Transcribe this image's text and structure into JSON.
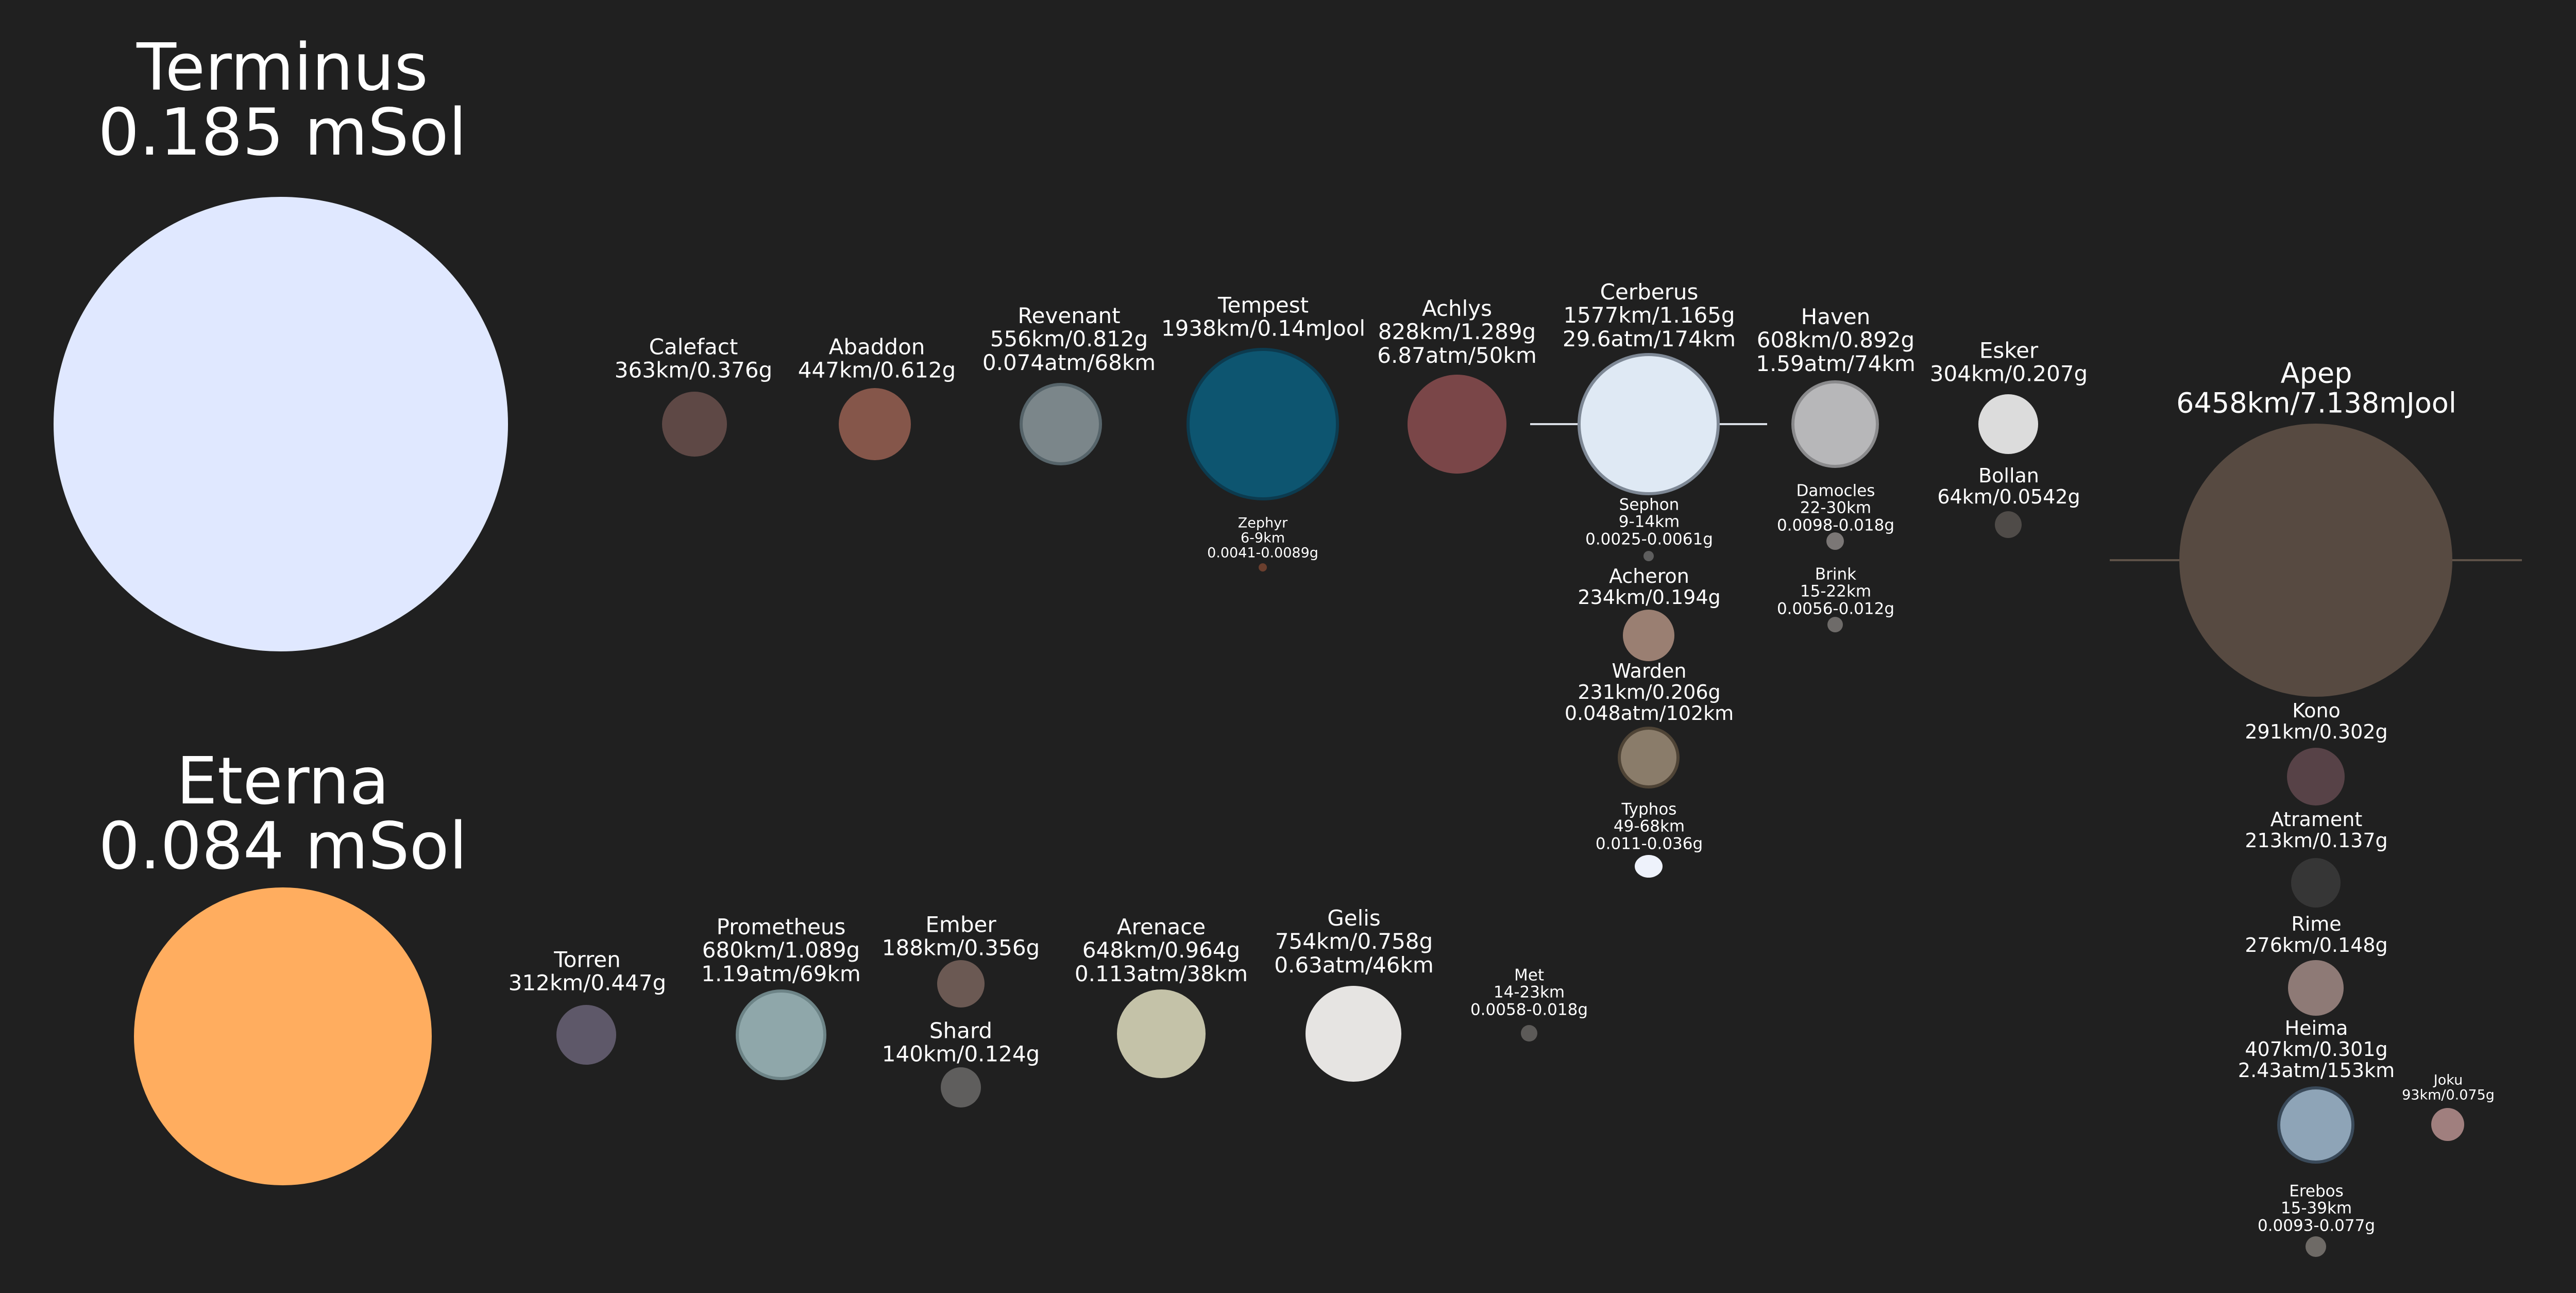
{
  "stars": [
    {
      "id": "terminus",
      "name": "Terminus",
      "mass": "0.185 mSol",
      "color": "#e0e8ff"
    },
    {
      "id": "eterna",
      "name": "Eterna",
      "mass": "0.084 mSol",
      "color": "#ffad5f"
    }
  ],
  "bodies": [
    {
      "id": "calefact",
      "lines": [
        "Calefact",
        "363km/0.376g"
      ],
      "color": "#5e4845"
    },
    {
      "id": "abaddon",
      "lines": [
        "Abaddon",
        "447km/0.612g"
      ],
      "color": "#85564a"
    },
    {
      "id": "revenant",
      "lines": [
        "Revenant",
        "556km/0.812g",
        "0.074atm/68km"
      ],
      "color": "#7b868a",
      "border": "#56646a"
    },
    {
      "id": "tempest",
      "lines": [
        "Tempest",
        "1938km/0.14mJool"
      ],
      "color": "#0d5570",
      "border": "#0c3b4f"
    },
    {
      "id": "zephyr",
      "lines": [
        "Zephyr",
        "6-9km",
        "0.0041-0.0089g"
      ],
      "color": "#6b3f2e"
    },
    {
      "id": "achlys",
      "lines": [
        "Achlys",
        "828km/1.289g",
        "6.87atm/50km"
      ],
      "color": "#7a4648"
    },
    {
      "id": "cerberus",
      "lines": [
        "Cerberus",
        "1577km/1.165g",
        "29.6atm/174km"
      ],
      "color": "#dfe9f4",
      "border": "#7e8895"
    },
    {
      "id": "sephon",
      "lines": [
        "Sephon",
        "9-14km",
        "0.0025-0.0061g"
      ],
      "color": "#5e5e5e"
    },
    {
      "id": "acheron",
      "lines": [
        "Acheron",
        "234km/0.194g"
      ],
      "color": "#9a7f72"
    },
    {
      "id": "warden",
      "lines": [
        "Warden",
        "231km/0.206g",
        "0.048atm/102km"
      ],
      "color": "#8a7c6a",
      "border": "#4f4436"
    },
    {
      "id": "typhos",
      "lines": [
        "Typhos",
        "49-68km",
        "0.011-0.036g"
      ],
      "color": "#eef2fb"
    },
    {
      "id": "haven",
      "lines": [
        "Haven",
        "608km/0.892g",
        "1.59atm/74km"
      ],
      "color": "#b7b7b9",
      "border": "#8a8a8c"
    },
    {
      "id": "damocles",
      "lines": [
        "Damocles",
        "22-30km",
        "0.0098-0.018g"
      ],
      "color": "#7b7776"
    },
    {
      "id": "brink",
      "lines": [
        "Brink",
        "15-22km",
        "0.0056-0.012g"
      ],
      "color": "#6e6b69"
    },
    {
      "id": "esker",
      "lines": [
        "Esker",
        "304km/0.207g"
      ],
      "color": "#dcdcdc"
    },
    {
      "id": "bollan",
      "lines": [
        "Bollan",
        "64km/0.0542g"
      ],
      "color": "#4f4b48"
    },
    {
      "id": "apep",
      "lines": [
        "Apep",
        "6458km/7.138mJool"
      ],
      "color": "#574a41"
    },
    {
      "id": "kono",
      "lines": [
        "Kono",
        "291km/0.302g"
      ],
      "color": "#574247"
    },
    {
      "id": "atrament",
      "lines": [
        "Atrament",
        "213km/0.137g"
      ],
      "color": "#363636"
    },
    {
      "id": "rime",
      "lines": [
        "Rime",
        "276km/0.148g"
      ],
      "color": "#8e7a76"
    },
    {
      "id": "heima",
      "lines": [
        "Heima",
        "407km/0.301g",
        "2.43atm/153km"
      ],
      "color": "#8ea4b7",
      "border": "#3a4a5a"
    },
    {
      "id": "joku",
      "lines": [
        "Joku",
        "93km/0.075g"
      ],
      "color": "#a07f7e"
    },
    {
      "id": "erebos",
      "lines": [
        "Erebos",
        "15-39km",
        "0.0093-0.077g"
      ],
      "color": "#6e6a66"
    },
    {
      "id": "torren",
      "lines": [
        "Torren",
        "312km/0.447g"
      ],
      "color": "#5e5869"
    },
    {
      "id": "prometheus",
      "lines": [
        "Prometheus",
        "680km/1.089g",
        "1.19atm/69km"
      ],
      "color": "#8fa7aa",
      "border": "#6d8487"
    },
    {
      "id": "ember",
      "lines": [
        "Ember",
        "188km/0.356g"
      ],
      "color": "#6b5953"
    },
    {
      "id": "shard",
      "lines": [
        "Shard",
        "140km/0.124g"
      ],
      "color": "#5f5e5d"
    },
    {
      "id": "arenace",
      "lines": [
        "Arenace",
        "648km/0.964g",
        "0.113atm/38km"
      ],
      "color": "#c4c2a8"
    },
    {
      "id": "gelis",
      "lines": [
        "Gelis",
        "754km/0.758g",
        "0.63atm/46km"
      ],
      "color": "#e6e4e2"
    },
    {
      "id": "met",
      "lines": [
        "Met",
        "14-23km",
        "0.0058-0.018g"
      ],
      "color": "#5c5a58"
    }
  ],
  "rings": [
    {
      "id": "cerberus-ring",
      "color": "#d8dde4"
    },
    {
      "id": "apep-ring",
      "color": "#5e5248"
    }
  ]
}
